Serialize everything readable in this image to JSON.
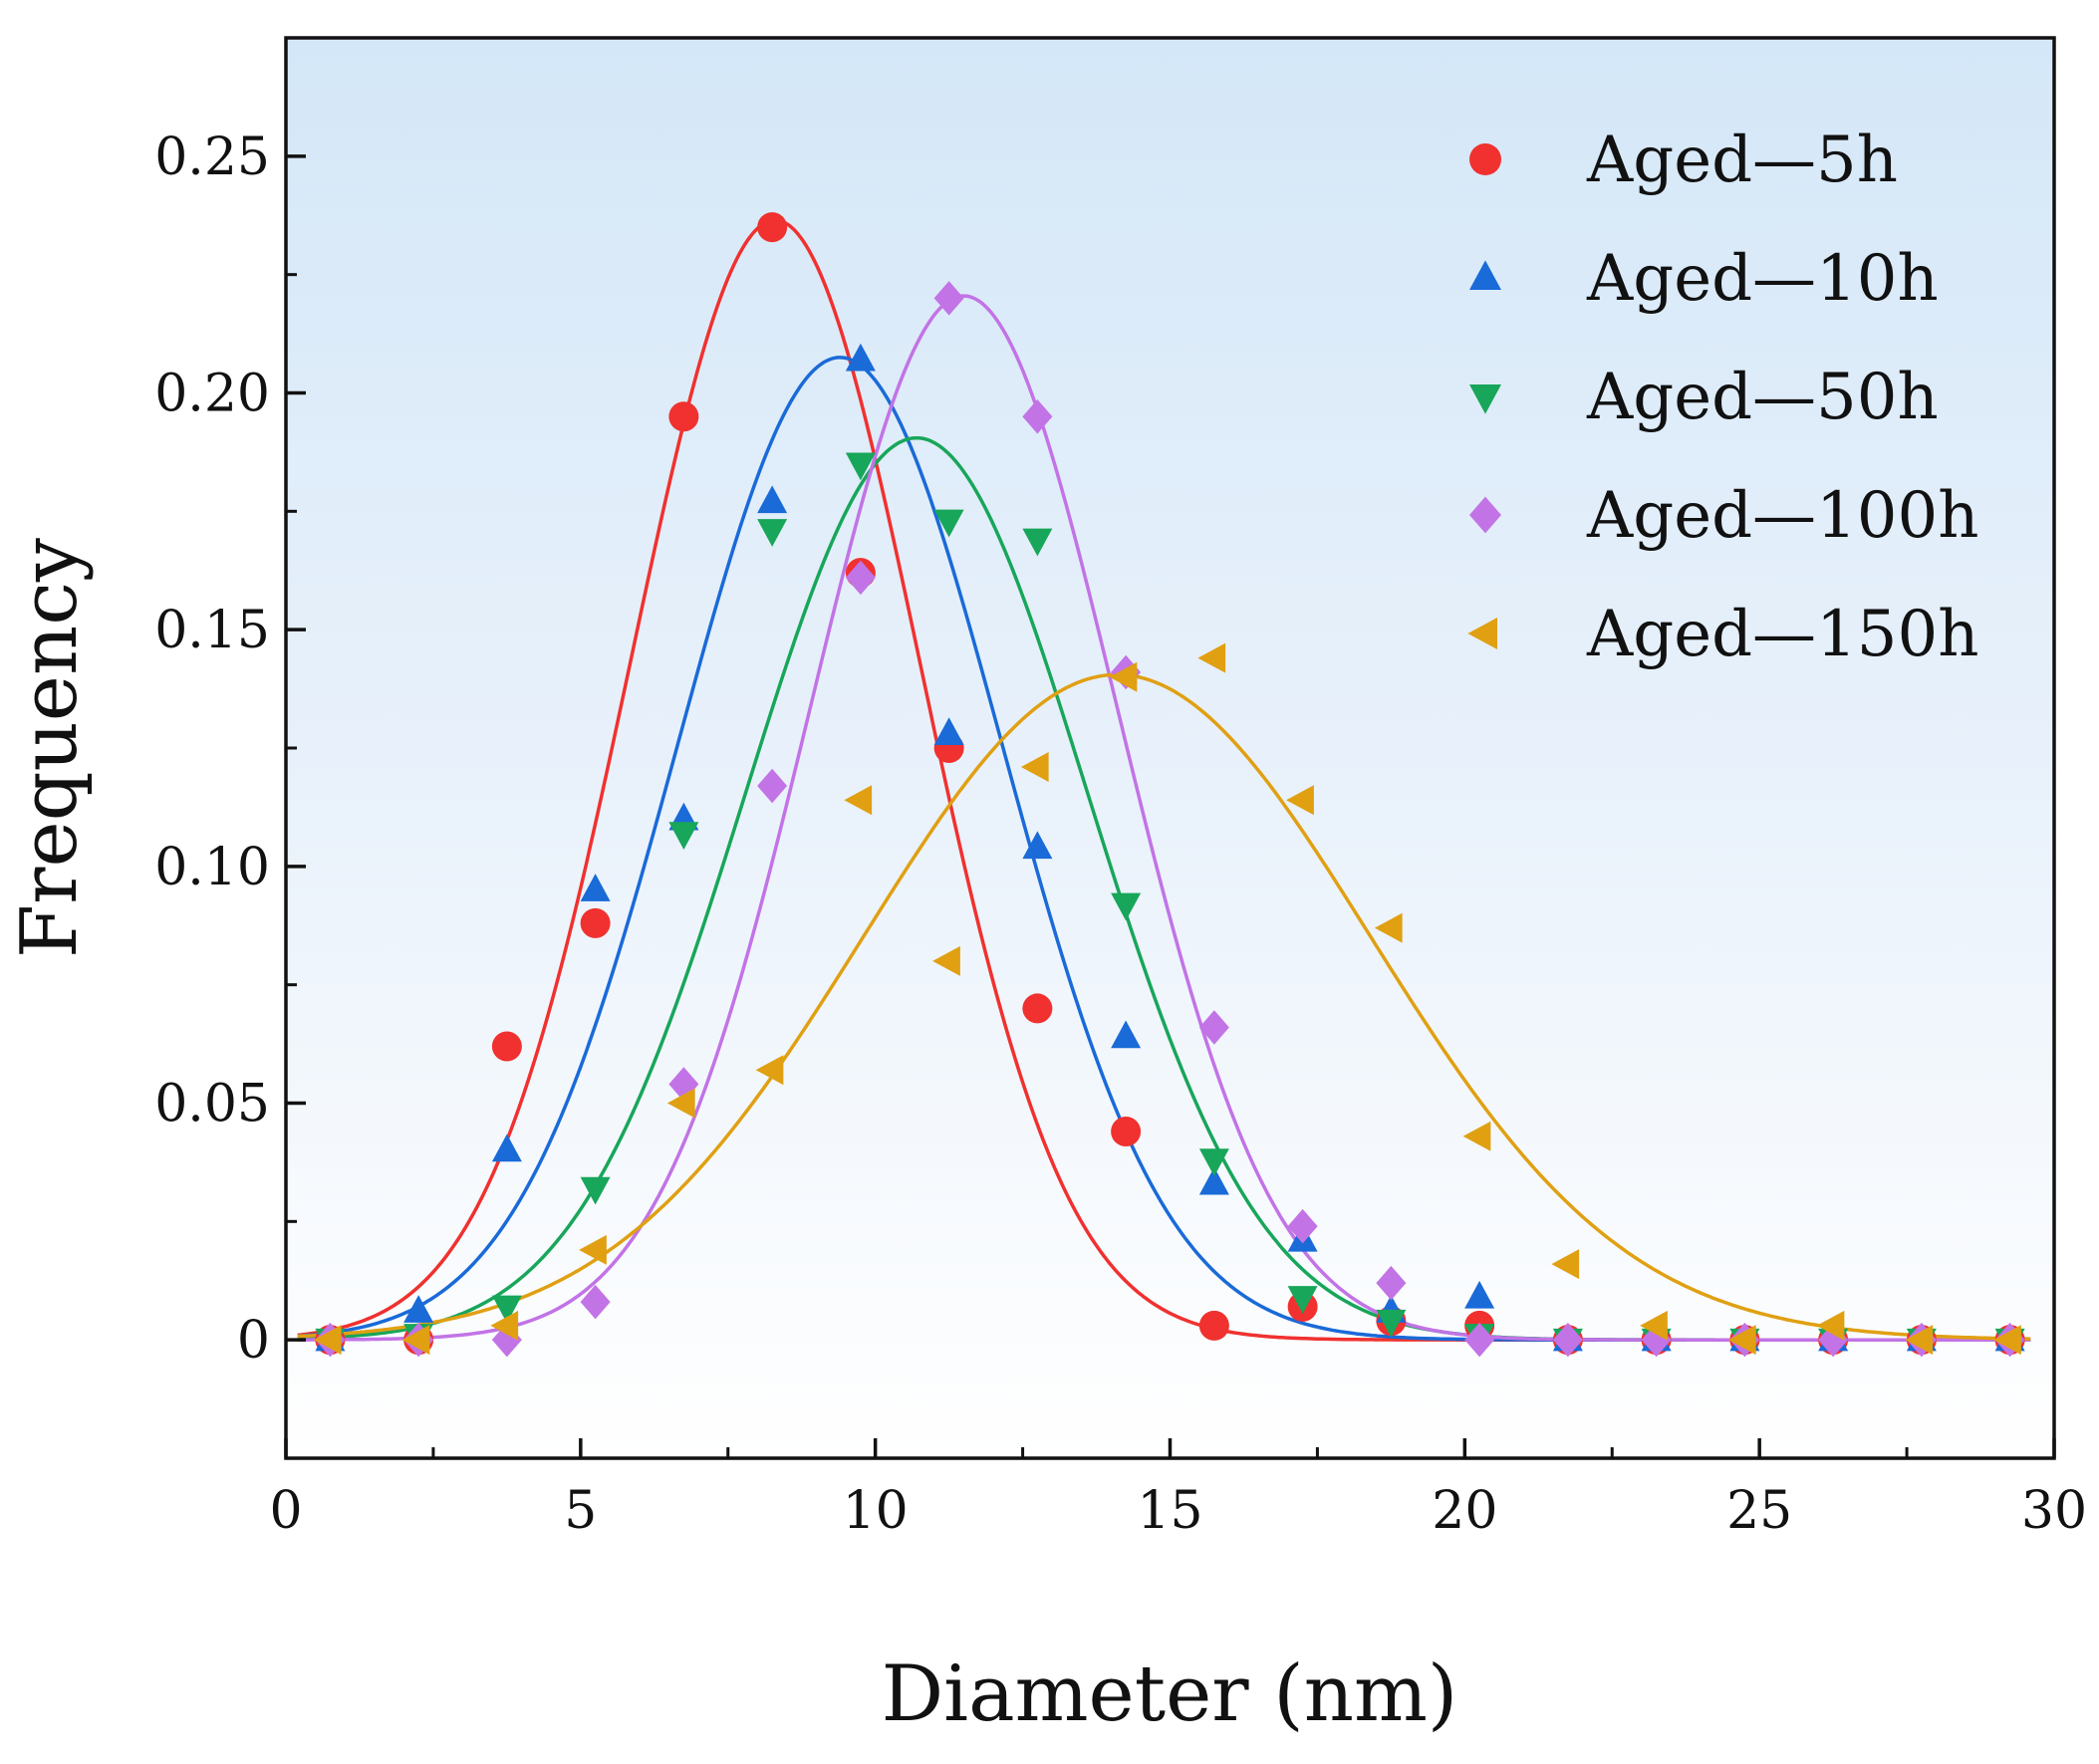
{
  "chart_data": {
    "type": "scatter",
    "title": "",
    "xlabel": "Diameter (nm)",
    "ylabel": "Frequency",
    "xlim": [
      0,
      30
    ],
    "ylim": [
      -0.025,
      0.275
    ],
    "x_ticks": [
      0,
      5,
      10,
      15,
      20,
      25,
      30
    ],
    "x_tick_labels": [
      "0",
      "5",
      "10",
      "15",
      "20",
      "25",
      "30"
    ],
    "y_ticks": [
      0,
      0.05,
      0.1,
      0.15,
      0.2,
      0.25
    ],
    "y_tick_labels": [
      "0",
      "0.05",
      "0.10",
      "0.15",
      "0.20",
      "0.25"
    ],
    "legend_position": "top-right",
    "x": [
      0.75,
      2.25,
      3.75,
      5.25,
      6.75,
      8.25,
      9.75,
      11.25,
      12.75,
      14.25,
      15.75,
      17.25,
      18.75,
      20.25,
      21.75,
      23.25,
      24.75,
      26.25,
      27.75,
      29.25
    ],
    "series": [
      {
        "name": "Aged—5h",
        "color": "#f0312f",
        "marker": "circle",
        "values": [
          0,
          0,
          0.062,
          0.088,
          0.195,
          0.235,
          0.162,
          0.125,
          0.07,
          0.044,
          0.003,
          0.007,
          0.004,
          0.003,
          0,
          0,
          0,
          0,
          0,
          0
        ],
        "fit": {
          "peak": 0.2365,
          "center": 8.3,
          "sigma": 2.45
        }
      },
      {
        "name": "Aged—10h",
        "color": "#1a6ad8",
        "marker": "triangle-up",
        "values": [
          0,
          0.006,
          0.04,
          0.095,
          0.11,
          0.177,
          0.207,
          0.128,
          0.104,
          0.064,
          0.033,
          0.021,
          0.006,
          0.009,
          0,
          0,
          0,
          0,
          0,
          0
        ],
        "fit": {
          "peak": 0.2075,
          "center": 9.4,
          "sigma": 2.75
        }
      },
      {
        "name": "Aged—50h",
        "color": "#18a65a",
        "marker": "triangle-down",
        "values": [
          0,
          0.001,
          0.007,
          0.032,
          0.107,
          0.171,
          0.185,
          0.173,
          0.169,
          0.092,
          0.038,
          0.009,
          0.004,
          0.001,
          0,
          0,
          0,
          0,
          0,
          0
        ],
        "fit": {
          "peak": 0.1905,
          "center": 10.7,
          "sigma": 2.9
        }
      },
      {
        "name": "Aged—100h",
        "color": "#c273e6",
        "marker": "diamond",
        "values": [
          0,
          0,
          0,
          0.008,
          0.054,
          0.117,
          0.161,
          0.22,
          0.195,
          0.141,
          0.066,
          0.024,
          0.012,
          0,
          0,
          0,
          0,
          0,
          0,
          0
        ],
        "fit": {
          "peak": 0.2205,
          "center": 11.5,
          "sigma": 2.6
        }
      },
      {
        "name": "Aged—150h",
        "color": "#e0a012",
        "marker": "triangle-left",
        "values": [
          0,
          0,
          0.003,
          0.019,
          0.05,
          0.057,
          0.114,
          0.08,
          0.121,
          0.14,
          0.144,
          0.114,
          0.087,
          0.043,
          0.016,
          0.003,
          0,
          0.003,
          0,
          0
        ],
        "fit": {
          "peak": 0.1405,
          "center": 14.1,
          "sigma": 4.3
        }
      }
    ]
  }
}
